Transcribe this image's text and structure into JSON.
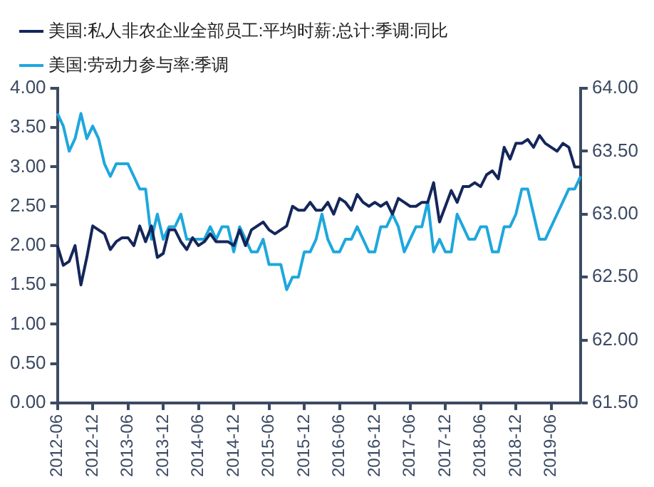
{
  "chart_data": {
    "type": "line",
    "categories": [
      "2012-06",
      null,
      null,
      null,
      null,
      null,
      "2012-12",
      null,
      null,
      null,
      null,
      null,
      "2013-06",
      null,
      null,
      null,
      null,
      null,
      "2013-12",
      null,
      null,
      null,
      null,
      null,
      "2014-06",
      null,
      null,
      null,
      null,
      null,
      "2014-12",
      null,
      null,
      null,
      null,
      null,
      "2015-06",
      null,
      null,
      null,
      null,
      null,
      "2015-12",
      null,
      null,
      null,
      null,
      null,
      "2016-06",
      null,
      null,
      null,
      null,
      null,
      "2016-12",
      null,
      null,
      null,
      null,
      null,
      "2017-06",
      null,
      null,
      null,
      null,
      null,
      "2017-12",
      null,
      null,
      null,
      null,
      null,
      "2018-06",
      null,
      null,
      null,
      null,
      null,
      "2018-12",
      null,
      null,
      null,
      null,
      null,
      "2019-06",
      null,
      null,
      null,
      null,
      null
    ],
    "series": [
      {
        "name": "美国:私人非农企业全部员工:平均时薪:总计:季调:同比",
        "color": "#14265a",
        "axis": "y",
        "values": [
          2.0,
          1.75,
          1.8,
          2.0,
          1.5,
          1.85,
          2.25,
          2.2,
          2.15,
          1.95,
          2.05,
          2.1,
          2.1,
          2.0,
          2.25,
          2.05,
          2.25,
          1.85,
          1.9,
          2.2,
          2.2,
          2.05,
          1.95,
          2.1,
          2.0,
          2.05,
          2.15,
          2.05,
          2.05,
          2.05,
          2.0,
          2.2,
          2.0,
          2.2,
          2.25,
          2.3,
          2.2,
          2.15,
          2.2,
          2.25,
          2.5,
          2.45,
          2.45,
          2.55,
          2.45,
          2.45,
          2.55,
          2.4,
          2.6,
          2.55,
          2.45,
          2.65,
          2.55,
          2.5,
          2.55,
          2.5,
          2.55,
          2.4,
          2.6,
          2.55,
          2.5,
          2.5,
          2.55,
          2.55,
          2.8,
          2.3,
          2.5,
          2.7,
          2.55,
          2.75,
          2.75,
          2.8,
          2.75,
          2.9,
          2.95,
          2.85,
          3.25,
          3.1,
          3.3,
          3.3,
          3.35,
          3.25,
          3.4,
          3.3,
          3.25,
          3.2,
          3.3,
          3.25,
          3.0,
          3.0
        ]
      },
      {
        "name": "美国:劳动力参与率:季调",
        "color": "#1ea7dd",
        "axis": "y2",
        "values": [
          63.8,
          63.7,
          63.5,
          63.6,
          63.8,
          63.6,
          63.7,
          63.6,
          63.4,
          63.3,
          63.4,
          63.4,
          63.4,
          63.3,
          63.2,
          63.2,
          62.8,
          63.0,
          62.8,
          62.9,
          62.9,
          63.0,
          62.8,
          62.8,
          62.8,
          62.8,
          62.9,
          62.8,
          62.9,
          62.9,
          62.7,
          62.9,
          62.8,
          62.7,
          62.7,
          62.8,
          62.6,
          62.6,
          62.6,
          62.4,
          62.5,
          62.5,
          62.7,
          62.7,
          62.8,
          63.0,
          62.8,
          62.7,
          62.7,
          62.8,
          62.8,
          62.9,
          62.8,
          62.7,
          62.7,
          62.9,
          62.9,
          63.0,
          62.9,
          62.7,
          62.8,
          62.9,
          62.9,
          63.1,
          62.7,
          62.8,
          62.7,
          62.7,
          63.0,
          62.9,
          62.8,
          62.8,
          62.9,
          62.9,
          62.7,
          62.7,
          62.9,
          62.9,
          63.0,
          63.2,
          63.2,
          63.0,
          62.8,
          62.8,
          62.9,
          63.0,
          63.1,
          63.2,
          63.2,
          63.3
        ]
      }
    ],
    "ylim": [
      0,
      4
    ],
    "yticks": [
      {
        "value": 0,
        "label": "0.00"
      },
      {
        "value": 0.5,
        "label": "0.50"
      },
      {
        "value": 1,
        "label": "1.00"
      },
      {
        "value": 1.5,
        "label": "1.50"
      },
      {
        "value": 2,
        "label": "2.00"
      },
      {
        "value": 2.5,
        "label": "2.50"
      },
      {
        "value": 3,
        "label": "3.00"
      },
      {
        "value": 3.5,
        "label": "3.50"
      },
      {
        "value": 4,
        "label": "4.00"
      }
    ],
    "y2lim": [
      61.5,
      64
    ],
    "y2ticks": [
      {
        "value": 61.5,
        "label": "61.50"
      },
      {
        "value": 62,
        "label": "62.00"
      },
      {
        "value": 62.5,
        "label": "62.50"
      },
      {
        "value": 63,
        "label": "63.00"
      },
      {
        "value": 63.5,
        "label": "63.50"
      },
      {
        "value": 64,
        "label": "64.00"
      }
    ],
    "legend": "top",
    "grid": false,
    "marker": "none",
    "line_style": "solid"
  }
}
